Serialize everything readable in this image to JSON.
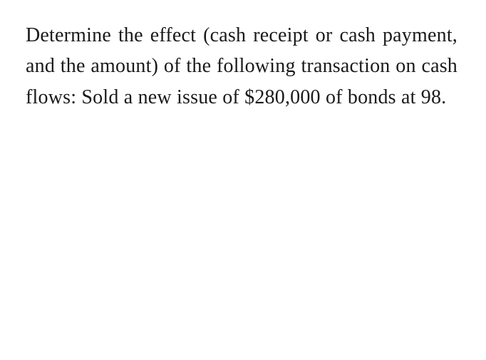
{
  "document": {
    "paragraph": "Determine the effect (cash receipt or cash payment, and the amount) of the following transaction on cash flows: Sold a new issue of $280,000 of bonds at 98.",
    "text_color": "#1a1a1a",
    "background_color": "#ffffff",
    "font_size": 28,
    "font_family": "Georgia, serif",
    "text_align": "justify",
    "bond_amount": "$280,000",
    "bond_price": 98
  }
}
